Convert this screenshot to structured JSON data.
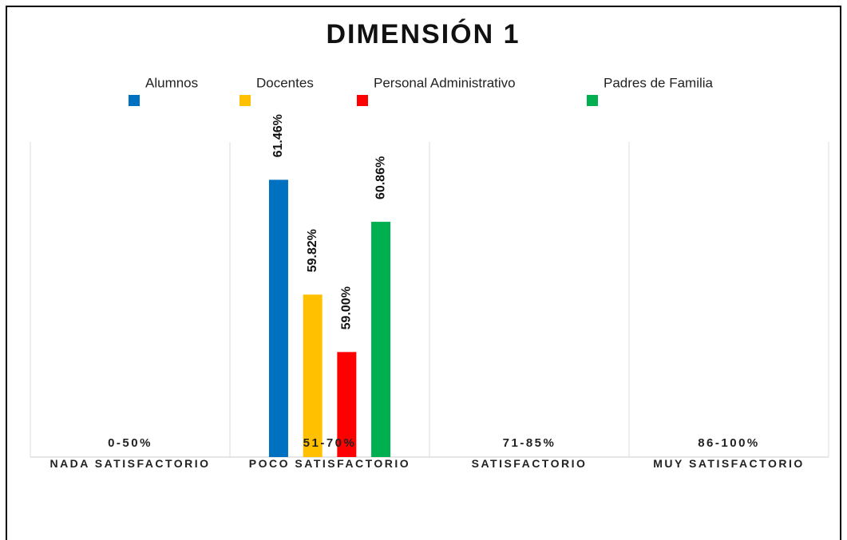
{
  "chart_data": {
    "type": "bar",
    "title": "DIMENSIÓN 1",
    "categories": [
      "NADA SATISFACTORIO",
      "POCO SATISFACTORIO",
      "SATISFACTORIO",
      "MUY SATISFACTORIO"
    ],
    "category_ranges": [
      "0-50%",
      "51-70%",
      "71-85%",
      "86-100%"
    ],
    "series": [
      {
        "name": "Alumnos",
        "color": "#0070c0",
        "values": [
          null,
          61.46,
          null,
          null
        ],
        "value_labels": [
          null,
          "61.46%",
          null,
          null
        ]
      },
      {
        "name": "Docentes",
        "color": "#ffc000",
        "values": [
          null,
          59.82,
          null,
          null
        ],
        "value_labels": [
          null,
          "59.82%",
          null,
          null
        ]
      },
      {
        "name": "Personal Administrativo",
        "color": "#ff0000",
        "values": [
          null,
          59.0,
          null,
          null
        ],
        "value_labels": [
          null,
          "59.00%",
          null,
          null
        ]
      },
      {
        "name": "Padres de Familia",
        "color": "#00b050",
        "values": [
          null,
          60.86,
          null,
          null
        ],
        "value_labels": [
          null,
          "60.86%",
          null,
          null
        ]
      }
    ],
    "ylim": [
      57.5,
      62
    ]
  }
}
